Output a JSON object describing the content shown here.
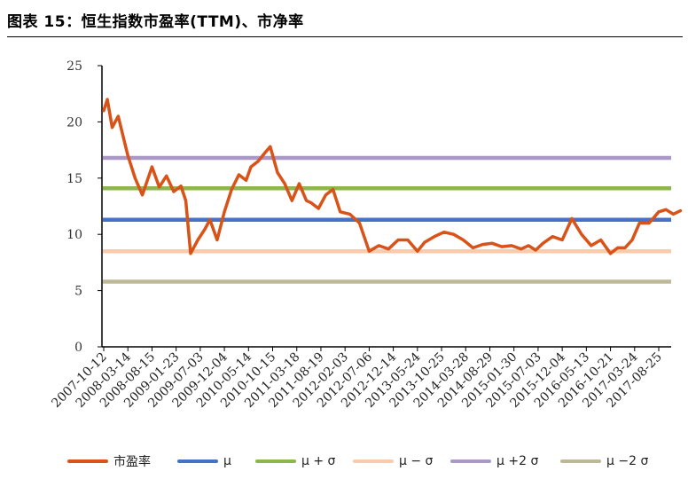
{
  "figure_title": "图表 15：恒生指数市盈率(TTM)、市净率",
  "chart_data": {
    "type": "line",
    "title": "图表 15：恒生指数市盈率(TTM)、市净率",
    "ylim": [
      0,
      25
    ],
    "yticks": [
      "0",
      "5",
      "10",
      "15",
      "20",
      "25"
    ],
    "grid": false,
    "legend_position": "bottom",
    "x_tick_labels": [
      "2007-10-12",
      "2008-03-14",
      "2008-08-15",
      "2009-01-23",
      "2009-07-03",
      "2009-12-04",
      "2010-05-14",
      "2010-10-15",
      "2011-03-18",
      "2011-08-19",
      "2012-02-03",
      "2012-07-06",
      "2012-12-14",
      "2013-05-24",
      "2013-10-25",
      "2014-03-28",
      "2014-08-29",
      "2015-01-30",
      "2015-07-03",
      "2015-12-04",
      "2016-05-13",
      "2016-10-21",
      "2017-03-24",
      "2017-08-25"
    ],
    "series": [
      {
        "name": "市盈率",
        "color": "#D95319",
        "x_index": [
          0,
          0.15,
          0.35,
          0.6,
          1.0,
          1.3,
          1.6,
          2.0,
          2.3,
          2.6,
          2.9,
          3.2,
          3.4,
          3.6,
          3.9,
          4.2,
          4.4,
          4.7,
          5.0,
          5.3,
          5.6,
          5.9,
          6.1,
          6.4,
          6.7,
          6.9,
          7.2,
          7.5,
          7.8,
          8.1,
          8.4,
          8.6,
          8.9,
          9.2,
          9.5,
          9.8,
          10.2,
          10.6,
          11.0,
          11.4,
          11.8,
          12.2,
          12.6,
          13.0,
          13.3,
          13.7,
          14.1,
          14.5,
          14.9,
          15.3,
          15.7,
          16.1,
          16.5,
          16.9,
          17.3,
          17.6,
          17.9,
          18.2,
          18.6,
          19.0,
          19.4,
          19.8,
          20.2,
          20.6,
          21.0,
          21.3,
          21.6,
          21.9,
          22.2,
          22.6,
          23.0,
          23.3,
          23.6,
          23.9
        ],
        "values": [
          21.0,
          22.0,
          19.5,
          20.5,
          17.0,
          15.0,
          13.5,
          16.0,
          14.2,
          15.2,
          13.8,
          14.3,
          13.0,
          8.3,
          9.5,
          10.5,
          11.3,
          9.5,
          12.0,
          14.0,
          15.3,
          14.8,
          16.0,
          16.5,
          17.3,
          17.8,
          15.5,
          14.5,
          13.0,
          14.5,
          13.0,
          12.8,
          12.3,
          13.5,
          14.0,
          12.0,
          11.8,
          11.0,
          8.5,
          9.0,
          8.7,
          9.5,
          9.5,
          8.5,
          9.3,
          9.8,
          10.2,
          10.0,
          9.5,
          8.8,
          9.1,
          9.2,
          8.9,
          9.0,
          8.7,
          9.0,
          8.6,
          9.2,
          9.8,
          9.5,
          11.4,
          10.0,
          9.0,
          9.5,
          8.3,
          8.8,
          8.8,
          9.5,
          11.0,
          11.0,
          12.0,
          12.2,
          11.8,
          12.1
        ]
      },
      {
        "name": "μ",
        "color": "#4472C4",
        "values": [
          11.3
        ]
      },
      {
        "name": "μ + σ",
        "color": "#8DB64C",
        "values": [
          14.1
        ]
      },
      {
        "name": "μ − σ",
        "color": "#F8CBAD",
        "values": [
          8.5
        ]
      },
      {
        "name": "μ +2 σ",
        "color": "#AA98C6",
        "values": [
          16.8
        ]
      },
      {
        "name": "μ −2 σ",
        "color": "#BDB896",
        "values": [
          5.8
        ]
      }
    ]
  }
}
